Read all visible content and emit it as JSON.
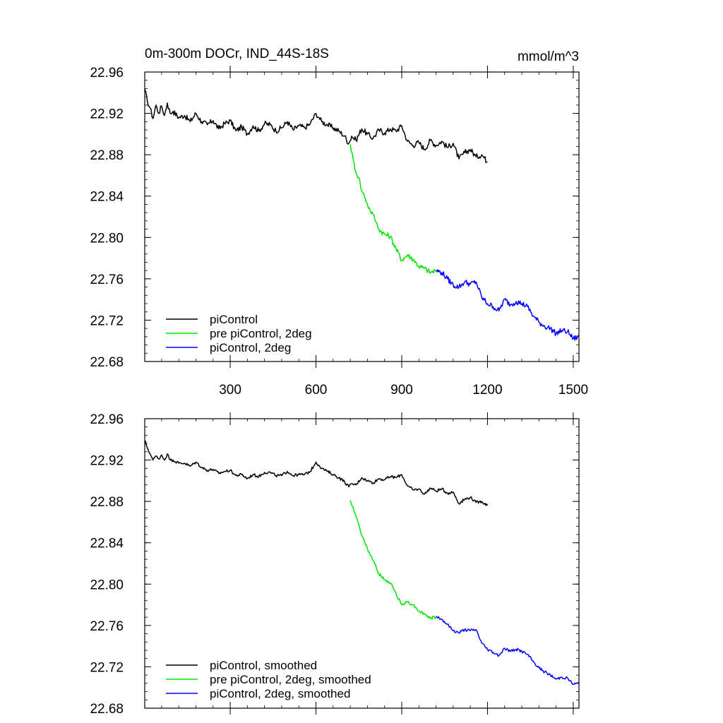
{
  "chart_data": [
    {
      "type": "line",
      "title": "0m-300m DOCr, IND_44S-18S",
      "units": "mmol/m^3",
      "xlim": [
        1,
        1520
      ],
      "ylim": [
        22.68,
        22.96
      ],
      "xticks": [
        "300",
        "600",
        "900",
        "1200",
        "1500"
      ],
      "yticks": [
        "22.96",
        "22.92",
        "22.88",
        "22.84",
        "22.80",
        "22.76",
        "22.72",
        "22.68"
      ],
      "legend_position": "bottom-left",
      "series": [
        {
          "name": "piControl",
          "color": "#000000",
          "x": [
            1,
            10,
            20,
            30,
            40,
            50,
            60,
            70,
            80,
            90,
            100,
            120,
            140,
            160,
            180,
            200,
            220,
            240,
            260,
            280,
            300,
            320,
            340,
            360,
            380,
            400,
            420,
            440,
            460,
            480,
            500,
            520,
            540,
            560,
            580,
            600,
            610,
            620,
            640,
            660,
            680,
            700,
            715,
            725,
            740,
            760,
            780,
            800,
            820,
            840,
            860,
            880,
            900,
            920,
            940,
            960,
            980,
            1000,
            1020,
            1040,
            1060,
            1080,
            1100,
            1120,
            1140,
            1160,
            1180,
            1200
          ],
          "y": [
            22.943,
            22.932,
            22.925,
            22.915,
            22.928,
            22.92,
            22.927,
            22.918,
            22.93,
            22.92,
            22.922,
            22.916,
            22.918,
            22.912,
            22.92,
            22.912,
            22.909,
            22.913,
            22.905,
            22.91,
            22.913,
            22.903,
            22.907,
            22.9,
            22.908,
            22.903,
            22.91,
            22.909,
            22.903,
            22.906,
            22.912,
            22.904,
            22.908,
            22.906,
            22.91,
            22.92,
            22.916,
            22.912,
            22.909,
            22.906,
            22.903,
            22.898,
            22.891,
            22.898,
            22.894,
            22.905,
            22.9,
            22.896,
            22.904,
            22.901,
            22.905,
            22.903,
            22.908,
            22.893,
            22.889,
            22.892,
            22.885,
            22.894,
            22.889,
            22.893,
            22.887,
            22.891,
            22.876,
            22.882,
            22.885,
            22.878,
            22.88,
            22.873
          ]
        },
        {
          "name": "pre piControl, 2deg",
          "color": "#00e600",
          "x": [
            720,
            730,
            740,
            750,
            760,
            770,
            780,
            790,
            800,
            810,
            820,
            840,
            860,
            880,
            900,
            920,
            940,
            960,
            980,
            1000,
            1020
          ],
          "y": [
            22.89,
            22.875,
            22.863,
            22.858,
            22.845,
            22.84,
            22.832,
            22.826,
            22.822,
            22.815,
            22.808,
            22.803,
            22.801,
            22.789,
            22.778,
            22.783,
            22.779,
            22.772,
            22.77,
            22.766,
            22.768
          ]
        },
        {
          "name": "piControl, 2deg",
          "color": "#0000ff",
          "x": [
            1020,
            1040,
            1060,
            1080,
            1100,
            1120,
            1140,
            1160,
            1180,
            1200,
            1220,
            1240,
            1260,
            1280,
            1300,
            1320,
            1340,
            1360,
            1380,
            1400,
            1420,
            1440,
            1460,
            1480,
            1500,
            1520
          ],
          "y": [
            22.768,
            22.766,
            22.76,
            22.754,
            22.752,
            22.757,
            22.755,
            22.757,
            22.742,
            22.736,
            22.733,
            22.729,
            22.74,
            22.735,
            22.738,
            22.736,
            22.733,
            22.724,
            22.718,
            22.714,
            22.712,
            22.707,
            22.71,
            22.709,
            22.702,
            22.704
          ]
        }
      ]
    },
    {
      "type": "line",
      "xlim": [
        1,
        1520
      ],
      "ylim": [
        22.68,
        22.96
      ],
      "yticks": [
        "22.96",
        "22.92",
        "22.88",
        "22.84",
        "22.80",
        "22.76",
        "22.72",
        "22.68"
      ],
      "legend_position": "bottom-left",
      "series": [
        {
          "name": "piControl, smoothed",
          "color": "#000000",
          "x": [
            1,
            10,
            20,
            30,
            40,
            50,
            60,
            70,
            80,
            90,
            100,
            120,
            140,
            160,
            180,
            200,
            220,
            240,
            260,
            280,
            300,
            320,
            340,
            360,
            380,
            400,
            420,
            440,
            460,
            480,
            500,
            520,
            540,
            560,
            580,
            600,
            610,
            620,
            640,
            660,
            680,
            700,
            715,
            725,
            740,
            760,
            780,
            800,
            820,
            840,
            860,
            880,
            900,
            920,
            940,
            960,
            980,
            1000,
            1020,
            1040,
            1060,
            1080,
            1100,
            1120,
            1140,
            1160,
            1180,
            1200
          ],
          "y": [
            22.939,
            22.932,
            22.926,
            22.92,
            22.924,
            22.921,
            22.925,
            22.92,
            22.926,
            22.92,
            22.92,
            22.917,
            22.917,
            22.914,
            22.918,
            22.913,
            22.91,
            22.911,
            22.907,
            22.909,
            22.91,
            22.905,
            22.906,
            22.902,
            22.906,
            22.904,
            22.908,
            22.908,
            22.905,
            22.905,
            22.909,
            22.905,
            22.906,
            22.906,
            22.909,
            22.918,
            22.915,
            22.912,
            22.909,
            22.906,
            22.903,
            22.899,
            22.894,
            22.897,
            22.896,
            22.903,
            22.9,
            22.898,
            22.902,
            22.901,
            22.904,
            22.903,
            22.906,
            22.895,
            22.891,
            22.892,
            22.887,
            22.893,
            22.89,
            22.892,
            22.888,
            22.889,
            22.878,
            22.882,
            22.884,
            22.879,
            22.88,
            22.876
          ]
        },
        {
          "name": "pre piControl, 2deg, smoothed",
          "color": "#00e600",
          "x": [
            720,
            730,
            740,
            750,
            760,
            770,
            780,
            790,
            800,
            810,
            820,
            840,
            860,
            880,
            900,
            920,
            940,
            960,
            980,
            1000,
            1020
          ],
          "y": [
            22.881,
            22.874,
            22.865,
            22.858,
            22.847,
            22.841,
            22.834,
            22.828,
            22.823,
            22.817,
            22.81,
            22.804,
            22.801,
            22.791,
            22.78,
            22.783,
            22.78,
            22.774,
            22.771,
            22.767,
            22.768
          ]
        },
        {
          "name": "piControl, 2deg, smoothed",
          "color": "#0000ff",
          "x": [
            1020,
            1040,
            1060,
            1080,
            1100,
            1120,
            1140,
            1160,
            1180,
            1200,
            1220,
            1240,
            1260,
            1280,
            1300,
            1320,
            1340,
            1360,
            1380,
            1400,
            1420,
            1440,
            1460,
            1480,
            1500,
            1520
          ],
          "y": [
            22.769,
            22.766,
            22.761,
            22.755,
            22.753,
            22.756,
            22.755,
            22.756,
            22.743,
            22.737,
            22.734,
            22.731,
            22.738,
            22.735,
            22.737,
            22.735,
            22.732,
            22.725,
            22.719,
            22.715,
            22.712,
            22.708,
            22.71,
            22.709,
            22.703,
            22.704
          ]
        }
      ]
    }
  ]
}
